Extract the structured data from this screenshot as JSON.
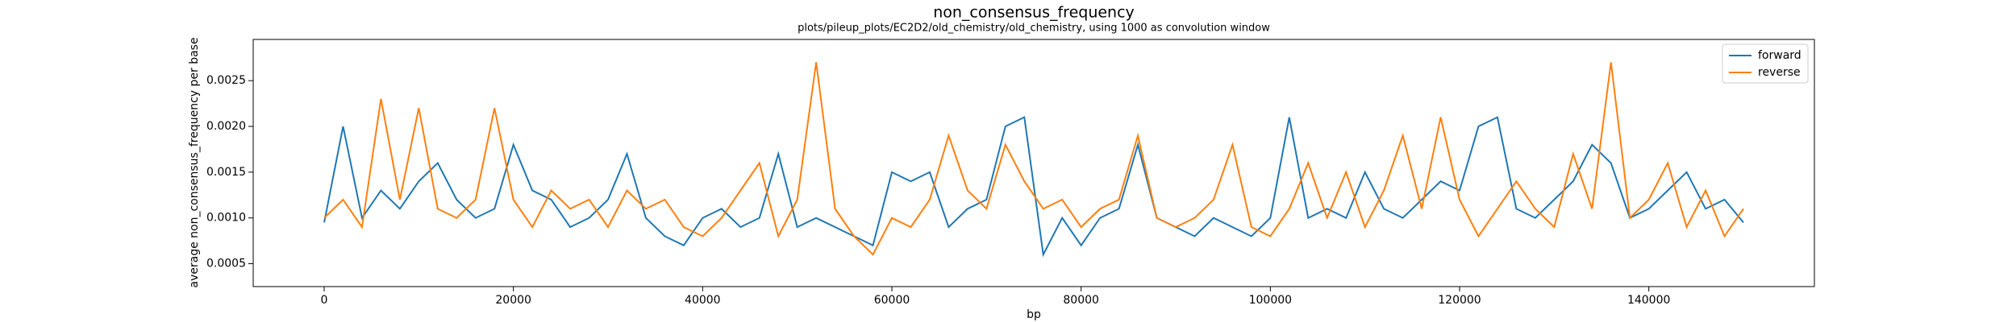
{
  "chart_data": {
    "type": "line",
    "title": "non_consensus_frequency",
    "subtitle": "plots/pileup_plots/EC2D2/old_chemistry/old_chemistry, using 1000 as convolution window",
    "x_label": "bp",
    "y_label": "average non_consensus_frequency per base",
    "x": [
      0,
      2000,
      4000,
      6000,
      8000,
      10000,
      12000,
      14000,
      16000,
      18000,
      20000,
      22000,
      24000,
      26000,
      28000,
      30000,
      32000,
      34000,
      36000,
      38000,
      40000,
      42000,
      44000,
      46000,
      48000,
      50000,
      52000,
      54000,
      56000,
      58000,
      60000,
      62000,
      64000,
      66000,
      68000,
      70000,
      72000,
      74000,
      76000,
      78000,
      80000,
      82000,
      84000,
      86000,
      88000,
      90000,
      92000,
      94000,
      96000,
      98000,
      100000,
      102000,
      104000,
      106000,
      108000,
      110000,
      112000,
      114000,
      116000,
      118000,
      120000,
      122000,
      124000,
      126000,
      128000,
      130000,
      132000,
      134000,
      136000,
      138000,
      140000,
      142000,
      144000,
      146000,
      148000,
      150000
    ],
    "series": [
      {
        "name": "forward",
        "color": "#1f77b4",
        "values": [
          0.00095,
          0.002,
          0.001,
          0.0013,
          0.0011,
          0.0014,
          0.0016,
          0.0012,
          0.001,
          0.0011,
          0.0018,
          0.0013,
          0.0012,
          0.0009,
          0.001,
          0.0012,
          0.0017,
          0.001,
          0.0008,
          0.0007,
          0.001,
          0.0011,
          0.0009,
          0.001,
          0.0017,
          0.0009,
          0.001,
          0.0009,
          0.0008,
          0.0007,
          0.0015,
          0.0014,
          0.0015,
          0.0009,
          0.0011,
          0.0012,
          0.002,
          0.0021,
          0.0006,
          0.001,
          0.0007,
          0.001,
          0.0011,
          0.0018,
          0.001,
          0.0009,
          0.0008,
          0.001,
          0.0009,
          0.0008,
          0.001,
          0.0021,
          0.001,
          0.0011,
          0.001,
          0.0015,
          0.0011,
          0.001,
          0.0012,
          0.0014,
          0.0013,
          0.002,
          0.0021,
          0.0011,
          0.001,
          0.0012,
          0.0014,
          0.0018,
          0.0016,
          0.001,
          0.0011,
          0.0013,
          0.0015,
          0.0011,
          0.0012,
          0.00095
        ]
      },
      {
        "name": "reverse",
        "color": "#ff7f0e",
        "values": [
          0.001,
          0.0012,
          0.0009,
          0.0023,
          0.0012,
          0.0022,
          0.0011,
          0.001,
          0.0012,
          0.0022,
          0.0012,
          0.0009,
          0.0013,
          0.0011,
          0.0012,
          0.0009,
          0.0013,
          0.0011,
          0.0012,
          0.0009,
          0.0008,
          0.001,
          0.0013,
          0.0016,
          0.0008,
          0.0012,
          0.0027,
          0.0011,
          0.0008,
          0.0006,
          0.001,
          0.0009,
          0.0012,
          0.0019,
          0.0013,
          0.0011,
          0.0018,
          0.0014,
          0.0011,
          0.0012,
          0.0009,
          0.0011,
          0.0012,
          0.0019,
          0.001,
          0.0009,
          0.001,
          0.0012,
          0.0018,
          0.0009,
          0.0008,
          0.0011,
          0.0016,
          0.001,
          0.0015,
          0.0009,
          0.0013,
          0.0019,
          0.0011,
          0.0021,
          0.0012,
          0.0008,
          0.0011,
          0.0014,
          0.0011,
          0.0009,
          0.0017,
          0.0011,
          0.0027,
          0.001,
          0.0012,
          0.0016,
          0.0009,
          0.0013,
          0.0008,
          0.0011
        ]
      }
    ],
    "xlim": [
      -7500,
      157500
    ],
    "xticks": [
      0,
      20000,
      40000,
      60000,
      80000,
      100000,
      120000,
      140000
    ],
    "ylim": [
      0.00025,
      0.00295
    ],
    "yticks": [
      0.0005,
      {
        "value": 0.001,
        "label": "0.0010"
      },
      0.0015,
      {
        "value": 0.002,
        "label": "0.0020"
      },
      0.0025
    ],
    "legend": "upper right"
  }
}
